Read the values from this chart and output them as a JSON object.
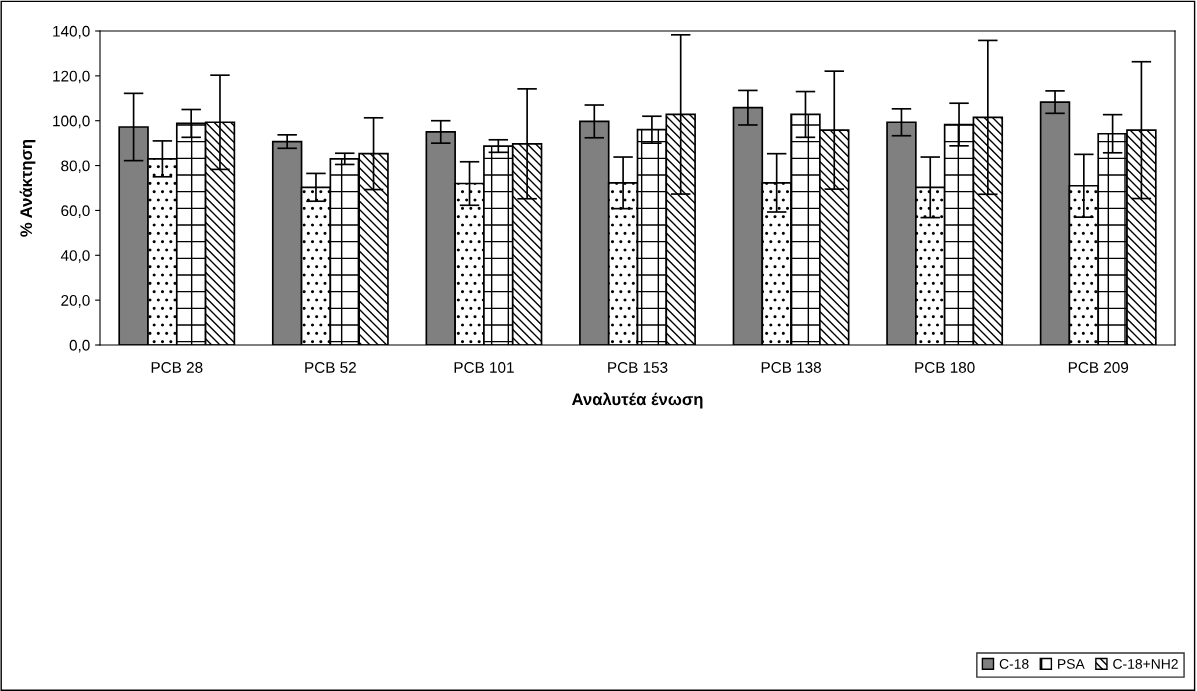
{
  "chart_data": {
    "type": "bar",
    "xlabel": "Αναλυτέα ένωση",
    "ylabel": "% Ανάκτηση",
    "categories": [
      "PCB 28",
      "PCB 52",
      "PCB 101",
      "PCB 153",
      "PCB 138",
      "PCB 180",
      "PCB 209"
    ],
    "series": [
      {
        "name": "C-18",
        "color": "#808080",
        "values": [
          97.2,
          90.7,
          95.0,
          99.7,
          105.8,
          99.3,
          108.3
        ],
        "errors": [
          15.0,
          3.0,
          5.0,
          7.3,
          7.7,
          6.0,
          5.0
        ]
      },
      {
        "color": "#000000",
        "values": [
          83.0,
          70.3,
          72.0,
          72.3,
          72.3,
          70.3,
          71.0
        ],
        "errors": [
          8.0,
          6.2,
          9.7,
          11.5,
          13.0,
          13.5,
          14.0
        ]
      },
      {
        "name": "PSA",
        "color": "#000000",
        "values": [
          98.8,
          83.0,
          88.7,
          96.0,
          102.8,
          98.3,
          94.2
        ],
        "errors": [
          6.2,
          2.5,
          2.8,
          6.0,
          10.2,
          9.5,
          8.5
        ]
      },
      {
        "name": "C-18+NH2",
        "color": "#000000",
        "values": [
          99.3,
          85.3,
          89.7,
          102.8,
          95.8,
          101.5,
          95.8
        ],
        "errors": [
          21.0,
          16.0,
          24.5,
          35.5,
          26.3,
          34.3,
          30.5
        ]
      }
    ],
    "ylim": [
      0,
      140
    ],
    "yticks": [
      {
        "value": 0,
        "label": "0,0"
      },
      {
        "value": 20,
        "label": "20,0"
      },
      {
        "value": 40,
        "label": "40,0"
      },
      {
        "value": 60,
        "label": "60,0"
      },
      {
        "value": 80,
        "label": "80,0"
      },
      {
        "value": 100,
        "label": "100,0"
      },
      {
        "value": 120,
        "label": "120,0"
      },
      {
        "value": 140,
        "label": "140,0"
      }
    ],
    "legend": "bottom right",
    "grid": false
  }
}
